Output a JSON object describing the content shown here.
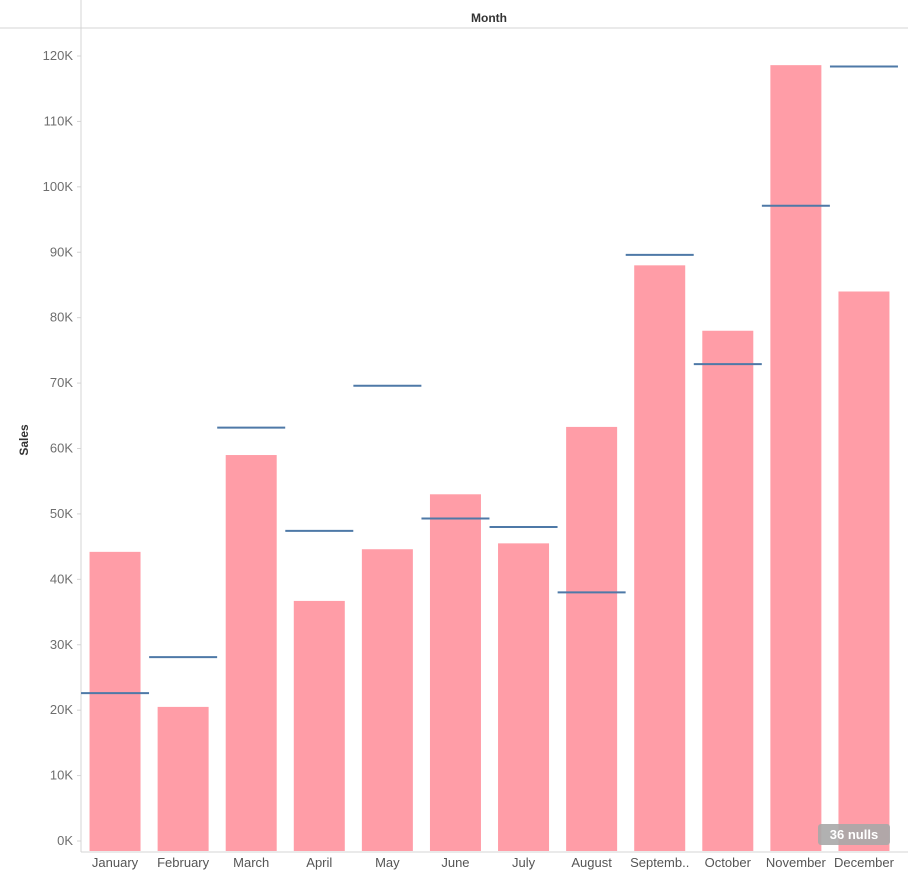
{
  "chart_data": {
    "type": "bar",
    "column_header": "Month",
    "ylabel": "Sales",
    "xlabel": "",
    "ylim": [
      0,
      120000
    ],
    "yticks": [
      0,
      10000,
      20000,
      30000,
      40000,
      50000,
      60000,
      70000,
      80000,
      90000,
      100000,
      110000,
      120000
    ],
    "ytick_labels": [
      "0K",
      "10K",
      "20K",
      "30K",
      "40K",
      "50K",
      "60K",
      "70K",
      "80K",
      "90K",
      "100K",
      "110K",
      "120K"
    ],
    "categories": [
      "January",
      "February",
      "March",
      "April",
      "May",
      "June",
      "July",
      "August",
      "Septemb..",
      "October",
      "November",
      "December"
    ],
    "series": [
      {
        "mark": "bar",
        "color": "#ff9da7",
        "values": [
          44200,
          20500,
          59000,
          36700,
          44600,
          53000,
          45500,
          63300,
          88000,
          78000,
          118600,
          84000
        ]
      },
      {
        "mark": "reference-line",
        "color": "#4e79a7",
        "values": [
          22600,
          28100,
          63200,
          47400,
          69600,
          49300,
          48000,
          38000,
          89600,
          72900,
          97100,
          118400
        ]
      }
    ],
    "grid": false,
    "legend": "none",
    "null_indicator": "36 nulls"
  }
}
